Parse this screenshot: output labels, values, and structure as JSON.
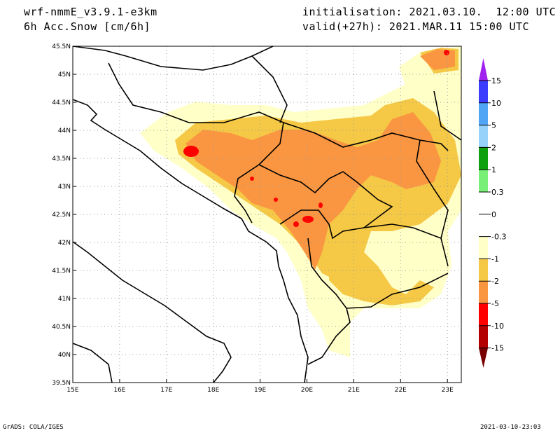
{
  "header": {
    "model": "wrf-nmmE_v3.9.1-e3km",
    "variable": "6h Acc.Snow [cm/6h]",
    "initialisation": "initialisation: 2021.03.10.  12:00 UTC",
    "valid": "valid(+27h): 2021.MAR.11 15:00 UTC"
  },
  "footer": {
    "left": "GrADS: COLA/IGES",
    "right": "2021-03-10-23:03"
  },
  "map": {
    "lon_labels": [
      "15E",
      "16E",
      "17E",
      "18E",
      "19E",
      "20E",
      "21E",
      "22E",
      "23E"
    ],
    "lat_labels": [
      "45.5N",
      "45N",
      "44.5N",
      "44N",
      "43.5N",
      "43N",
      "42.5N",
      "42N",
      "41.5N",
      "41N",
      "40.5N",
      "40N",
      "39.5N"
    ]
  },
  "colorbar": {
    "labels": [
      "15",
      "10",
      "5",
      "2",
      "1",
      "0.3",
      "0",
      "-0.3",
      "-1",
      "-2",
      "-5",
      "-10",
      "-15"
    ],
    "colors": [
      "#3c3cff",
      "#50a5f5",
      "#96d2fa",
      "#0fa00f",
      "#78f078",
      "#ffffff",
      "#ffffff",
      "#ffffc8",
      "#f5c846",
      "#fa9641",
      "#ff0000",
      "#b40000"
    ],
    "top_tip_color": "#a020f0",
    "bottom_tip_color": "#780000"
  }
}
